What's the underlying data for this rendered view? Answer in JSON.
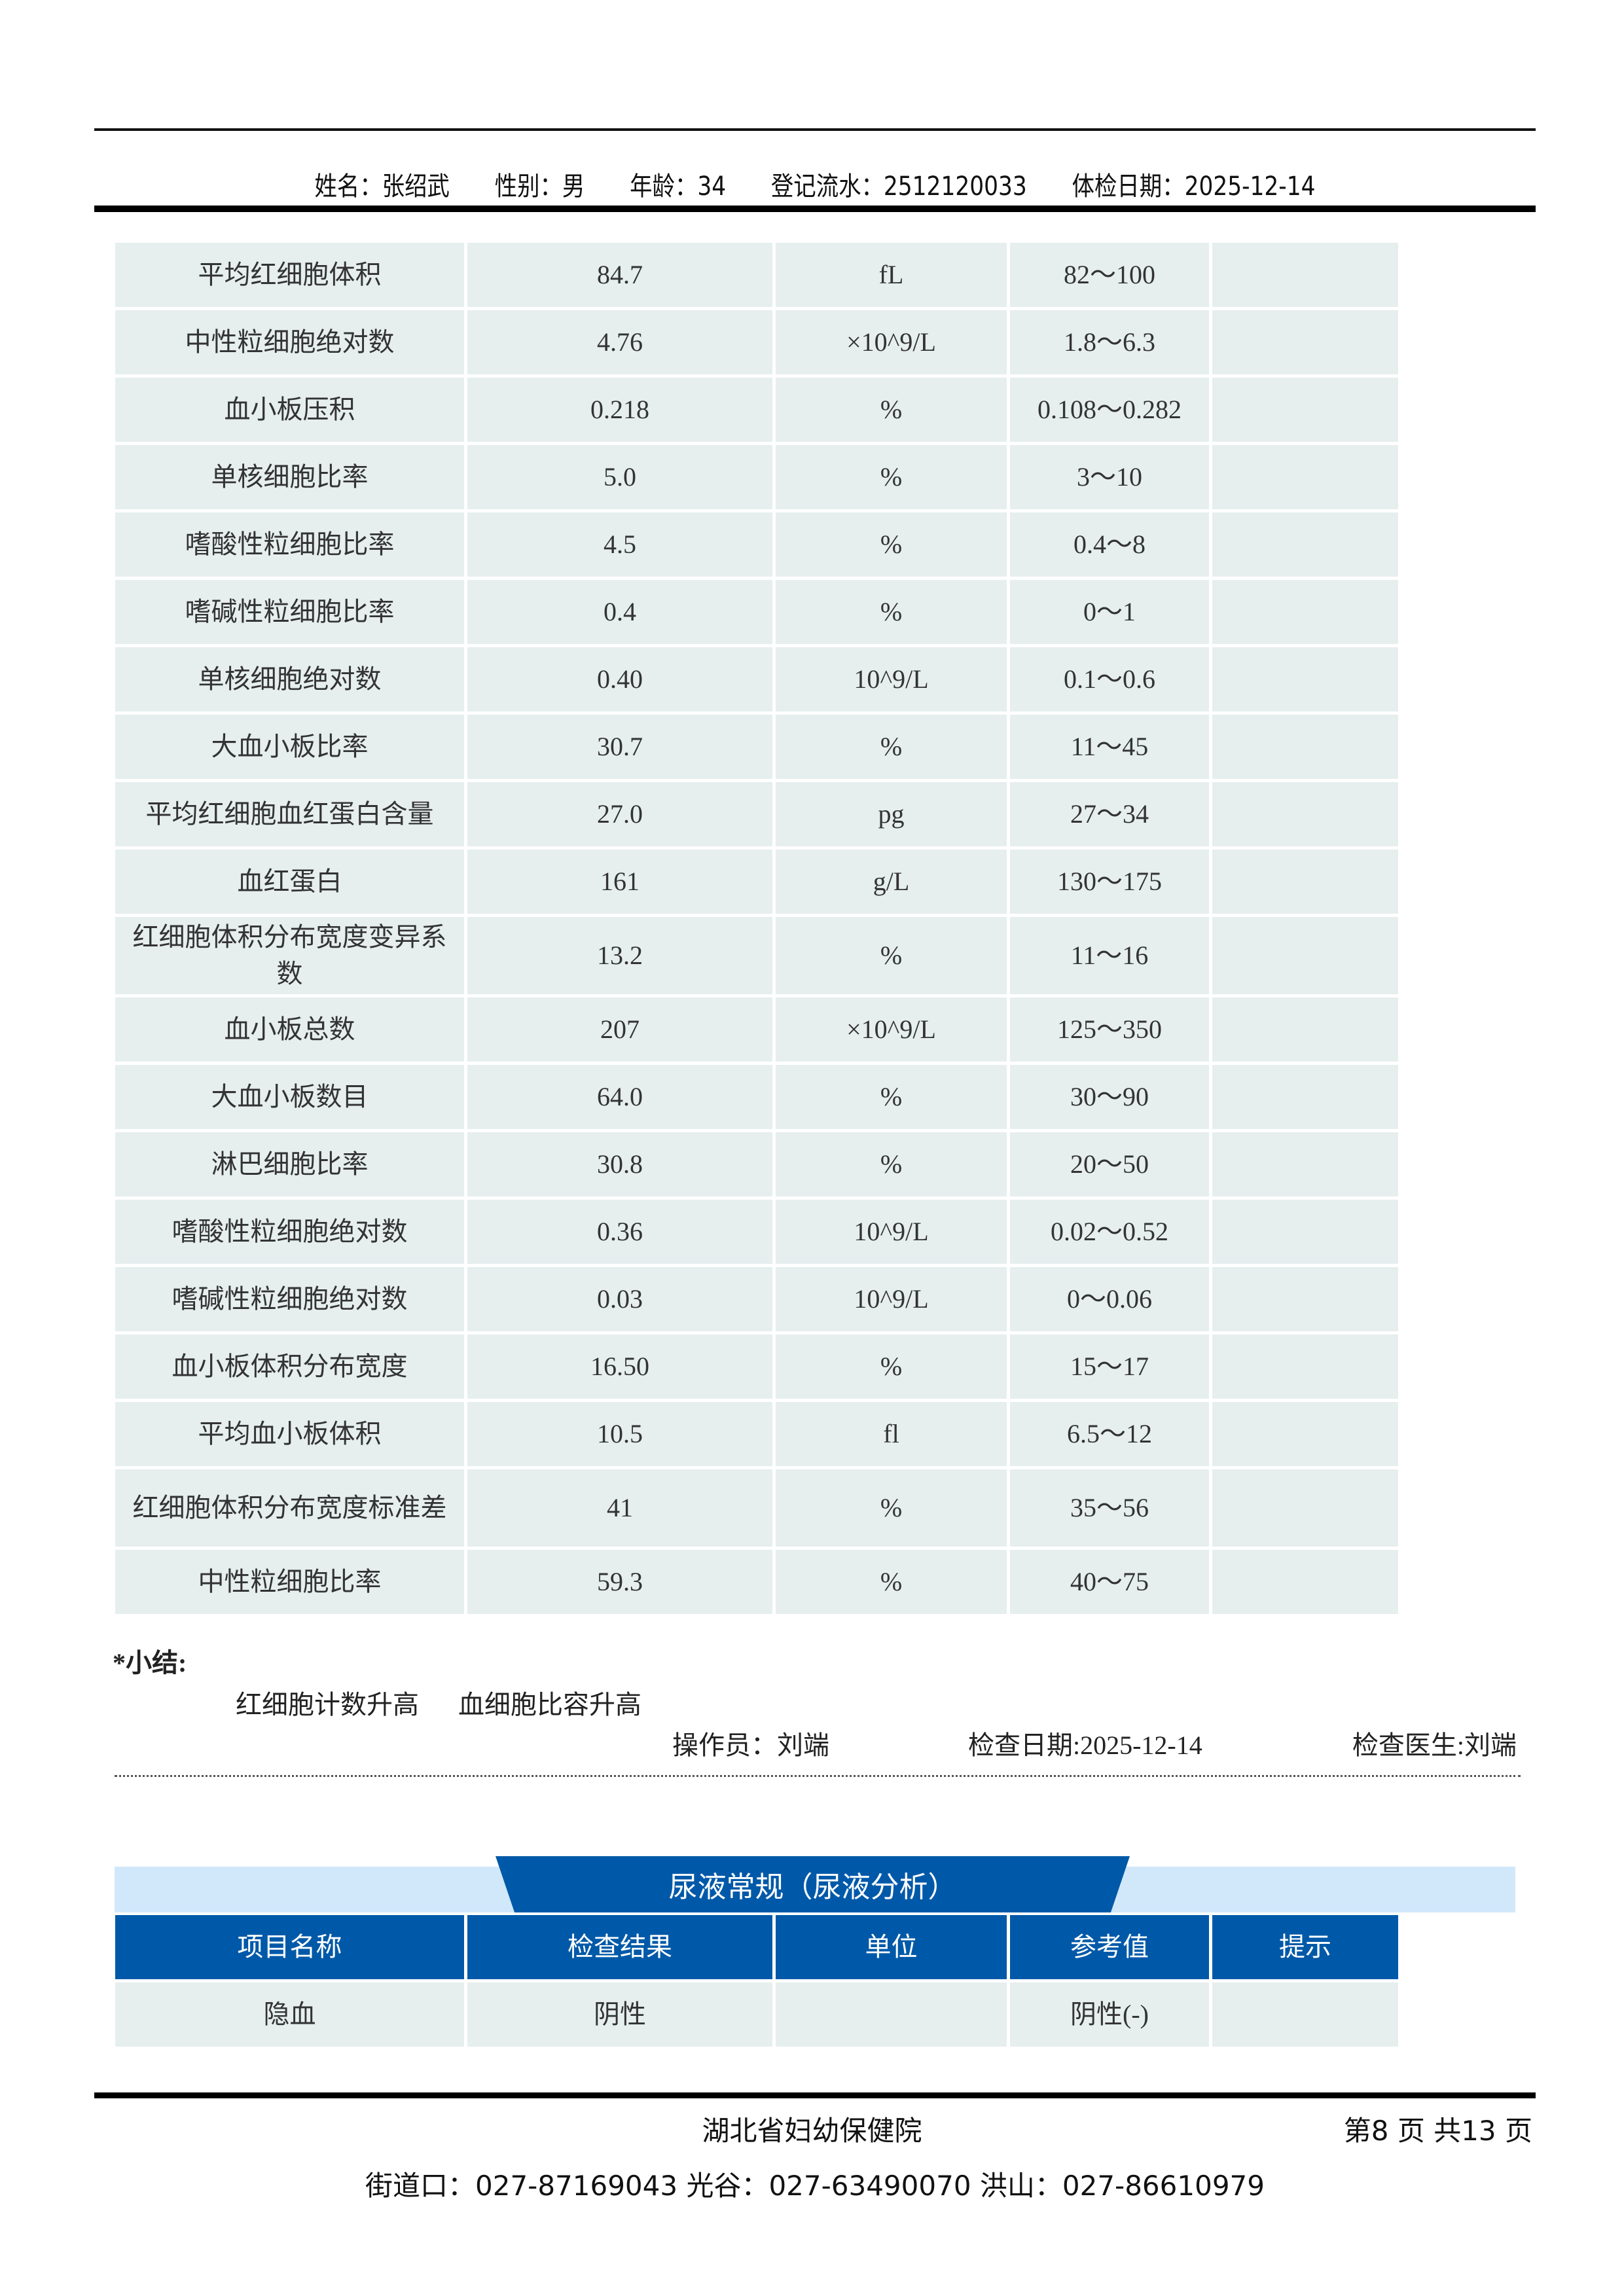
{
  "header": {
    "name": "姓名：张绍武",
    "gender": "性别：男",
    "age": "年龄：34",
    "reg_no": "登记流水：2512120033",
    "exam_date": "体检日期：2025-12-14"
  },
  "lab_rows": [
    [
      "平均红细胞体积",
      "84.7",
      "fL",
      "82～100",
      ""
    ],
    [
      "中性粒细胞绝对数",
      "4.76",
      "×10^9/L",
      "1.8～6.3",
      ""
    ],
    [
      "血小板压积",
      "0.218",
      "%",
      "0.108～0.282",
      ""
    ],
    [
      "单核细胞比率",
      "5.0",
      "%",
      "3～10",
      ""
    ],
    [
      "嗜酸性粒细胞比率",
      "4.5",
      "%",
      "0.4～8",
      ""
    ],
    [
      "嗜碱性粒细胞比率",
      "0.4",
      "%",
      "0～1",
      ""
    ],
    [
      "单核细胞绝对数",
      "0.40",
      "10^9/L",
      "0.1～0.6",
      ""
    ],
    [
      "大血小板比率",
      "30.7",
      "%",
      "11～45",
      ""
    ],
    [
      "平均红细胞血红蛋白含量",
      "27.0",
      "pg",
      "27～34",
      ""
    ],
    [
      "血红蛋白",
      "161",
      "g/L",
      "130～175",
      ""
    ],
    [
      "红细胞体积分布宽度变异系数",
      "13.2",
      "%",
      "11～16",
      ""
    ],
    [
      "血小板总数",
      "207",
      "×10^9/L",
      "125～350",
      ""
    ],
    [
      "大血小板数目",
      "64.0",
      "%",
      "30～90",
      ""
    ],
    [
      "淋巴细胞比率",
      "30.8",
      "%",
      "20～50",
      ""
    ],
    [
      "嗜酸性粒细胞绝对数",
      "0.36",
      "10^9/L",
      "0.02～0.52",
      ""
    ],
    [
      "嗜碱性粒细胞绝对数",
      "0.03",
      "10^9/L",
      "0～0.06",
      ""
    ],
    [
      "血小板体积分布宽度",
      "16.50",
      "%",
      "15～17",
      ""
    ],
    [
      "平均血小板体积",
      "10.5",
      "fl",
      "6.5～12",
      ""
    ],
    [
      "红细胞体积分布宽度标准差",
      "41",
      "%",
      "35～56",
      ""
    ],
    [
      "中性粒细胞比率",
      "59.3",
      "%",
      "40～75",
      ""
    ]
  ],
  "summary": {
    "title": "*小结:",
    "items": [
      "红细胞计数升高",
      "血细胞比容升高"
    ],
    "operator": "操作员：刘端",
    "check_date": "检查日期:2025-12-14",
    "doctor": "检查医生:刘端"
  },
  "urine": {
    "title": "尿液常规（尿液分析）",
    "columns": [
      "项目名称",
      "检查结果",
      "单位",
      "参考值",
      "提示"
    ],
    "rows": [
      [
        "隐血",
        "阴性",
        "",
        "阴性(-)",
        ""
      ]
    ]
  },
  "footer": {
    "org": "湖北省妇幼保健院",
    "page": "第8 页 共13 页",
    "address": "街道口：027-87169043  光谷：027-63490070 洪山：027-86610979"
  },
  "colors": {
    "accent": "#0059A8",
    "band": "#D0E8FA",
    "cell": "#E6EEEE"
  }
}
